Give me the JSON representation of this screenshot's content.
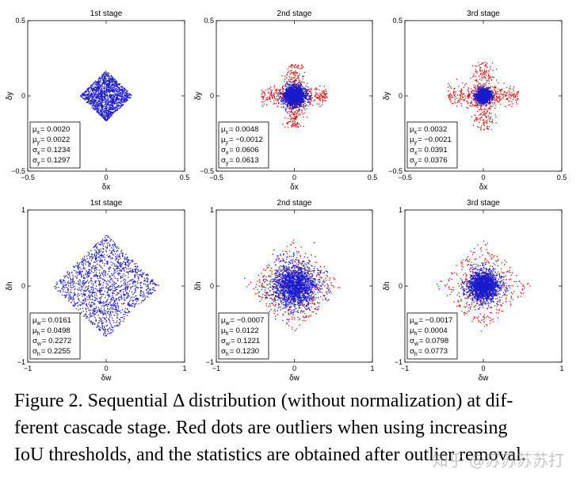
{
  "colors": {
    "inlier": "#1a1acc",
    "outlier": "#e01010",
    "axis": "#000000"
  },
  "chart_data": [
    {
      "type": "scatter",
      "title": "1st stage",
      "xlabel": "δx",
      "ylabel": "δy",
      "xlim": [
        -0.5,
        0.5
      ],
      "ylim": [
        -0.5,
        0.5
      ],
      "xticks": [
        "−0.5",
        "0",
        "0.5"
      ],
      "yticks": [
        "0.5",
        "0",
        "−0.5"
      ],
      "shape": "diamond",
      "inlier_spread": 0.32,
      "outlier_spread": 0.0,
      "stats": [
        {
          "label": "μx",
          "sym": "μ",
          "sub": "x",
          "value": "= 0.0020"
        },
        {
          "label": "μy",
          "sym": "μ",
          "sub": "y",
          "value": "= 0.0022"
        },
        {
          "label": "σx",
          "sym": "σ",
          "sub": "x",
          "value": "= 0.1234"
        },
        {
          "label": "σy",
          "sym": "σ",
          "sub": "y",
          "value": "= 0.1297"
        }
      ]
    },
    {
      "type": "scatter",
      "title": "2nd stage",
      "xlabel": "δx",
      "ylabel": "δy",
      "xlim": [
        -0.5,
        0.5
      ],
      "ylim": [
        -0.5,
        0.5
      ],
      "xticks": [
        "−0.5",
        "0",
        "0.5"
      ],
      "yticks": [
        "0.5",
        "0",
        "−0.5"
      ],
      "shape": "cross",
      "inlier_spread": 0.16,
      "outlier_spread": 0.42,
      "stats": [
        {
          "label": "μx",
          "sym": "μ",
          "sub": "x",
          "value": "= 0.0048"
        },
        {
          "label": "μy",
          "sym": "μ",
          "sub": "y",
          "value": "= −0.0012"
        },
        {
          "label": "σx",
          "sym": "σ",
          "sub": "x",
          "value": "= 0.0606"
        },
        {
          "label": "σy",
          "sym": "σ",
          "sub": "y",
          "value": "= 0.0613"
        }
      ]
    },
    {
      "type": "scatter",
      "title": "3rd stage",
      "xlabel": "δx",
      "ylabel": "δy",
      "xlim": [
        -0.5,
        0.5
      ],
      "ylim": [
        -0.5,
        0.5
      ],
      "xticks": [
        "−0.5",
        "0",
        "0.5"
      ],
      "yticks": [
        "0.5",
        "0",
        "−0.5"
      ],
      "shape": "cross",
      "inlier_spread": 0.1,
      "outlier_spread": 0.45,
      "stats": [
        {
          "label": "μx",
          "sym": "μ",
          "sub": "x",
          "value": "= 0.0032"
        },
        {
          "label": "μy",
          "sym": "μ",
          "sub": "y",
          "value": "= −0.0021"
        },
        {
          "label": "σx",
          "sym": "σ",
          "sub": "x",
          "value": "= 0.0391"
        },
        {
          "label": "σy",
          "sym": "σ",
          "sub": "y",
          "value": "= 0.0376"
        }
      ]
    },
    {
      "type": "scatter",
      "title": "1st stage",
      "xlabel": "δw",
      "ylabel": "δh",
      "xlim": [
        -1,
        1
      ],
      "ylim": [
        -1,
        1
      ],
      "xticks": [
        "−1",
        "0",
        "1"
      ],
      "yticks": [
        "1",
        "0",
        "−1"
      ],
      "shape": "diamond",
      "inlier_spread": 0.65,
      "outlier_spread": 0.0,
      "stats": [
        {
          "label": "μw",
          "sym": "μ",
          "sub": "w",
          "value": "= 0.0161"
        },
        {
          "label": "μh",
          "sym": "μ",
          "sub": "h",
          "value": "= 0.0498"
        },
        {
          "label": "σw",
          "sym": "σ",
          "sub": "w",
          "value": "= 0.2272"
        },
        {
          "label": "σh",
          "sym": "σ",
          "sub": "h",
          "value": "= 0.2255"
        }
      ]
    },
    {
      "type": "scatter",
      "title": "2nd stage",
      "xlabel": "δw",
      "ylabel": "δh",
      "xlim": [
        -1,
        1
      ],
      "ylim": [
        -1,
        1
      ],
      "xticks": [
        "−1",
        "0",
        "1"
      ],
      "yticks": [
        "1",
        "0",
        "−1"
      ],
      "shape": "diamond",
      "inlier_spread": 0.35,
      "outlier_spread": 0.62,
      "stats": [
        {
          "label": "μw",
          "sym": "μ",
          "sub": "w",
          "value": "= −0.0007"
        },
        {
          "label": "μh",
          "sym": "μ",
          "sub": "h",
          "value": "= 0.0122"
        },
        {
          "label": "σw",
          "sym": "σ",
          "sub": "w",
          "value": "= 0.1221"
        },
        {
          "label": "σh",
          "sym": "σ",
          "sub": "h",
          "value": "= 0.1230"
        }
      ]
    },
    {
      "type": "scatter",
      "title": "3rd stage",
      "xlabel": "δw",
      "ylabel": "δh",
      "xlim": [
        -1,
        1
      ],
      "ylim": [
        -1,
        1
      ],
      "xticks": [
        "−1",
        "0",
        "1"
      ],
      "yticks": [
        "1",
        "0",
        "−1"
      ],
      "shape": "diamond",
      "inlier_spread": 0.24,
      "outlier_spread": 0.62,
      "stats": [
        {
          "label": "μw",
          "sym": "μ",
          "sub": "w",
          "value": "= −0.0017"
        },
        {
          "label": "μh",
          "sym": "μ",
          "sub": "h",
          "value": "= 0.0004"
        },
        {
          "label": "σw",
          "sym": "σ",
          "sub": "w",
          "value": "= 0.0798"
        },
        {
          "label": "σh",
          "sym": "σ",
          "sub": "h",
          "value": "= 0.0773"
        }
      ]
    }
  ],
  "caption": {
    "l1": "Figure 2. Sequential Δ distribution (without normalization) at dif-",
    "l2": "ferent cascade stage. Red dots are outliers when using increasing",
    "l3": "IoU thresholds, and the statistics are obtained after outlier removal."
  },
  "watermark": "知乎 @苏苏苏苏打"
}
